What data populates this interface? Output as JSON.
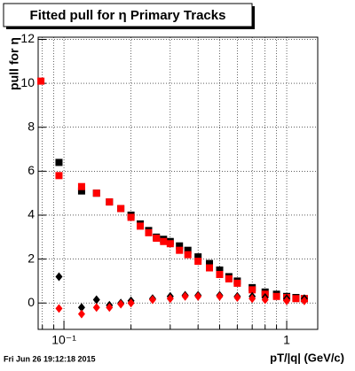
{
  "chart_data": {
    "type": "scatter",
    "title": "Fitted pull for  η  Primary Tracks",
    "ylabel": "pull for  η",
    "xlabel": "pT/|q| (GeV/c)",
    "footer": "Fri Jun 26 19:12:18 2015",
    "xscale": "log",
    "grid": true,
    "xlim": [
      0.0766,
      1.378
    ],
    "ylim": [
      -1.2,
      12.1
    ],
    "xticks": [
      {
        "value": 0.1,
        "label": "10⁻¹"
      },
      1
    ],
    "xminor": [
      0.08,
      0.09,
      0.2,
      0.3,
      0.4,
      0.5,
      0.6,
      0.7,
      0.8,
      0.9
    ],
    "yticks": [
      0,
      2,
      4,
      6,
      8,
      10,
      12
    ],
    "series": [
      {
        "color": "#000000",
        "marker": "square",
        "x": [
          0.095,
          0.12,
          0.14,
          0.16,
          0.18,
          0.2,
          0.22,
          0.24,
          0.26,
          0.28,
          0.3,
          0.33,
          0.36,
          0.4,
          0.45,
          0.5,
          0.55,
          0.6,
          0.7,
          0.8,
          0.9,
          1.0,
          1.1,
          1.2
        ],
        "values": [
          6.4,
          5.1,
          5.0,
          4.6,
          4.3,
          4.0,
          3.6,
          3.3,
          3.0,
          2.9,
          2.8,
          2.6,
          2.4,
          2.1,
          1.8,
          1.5,
          1.2,
          1.0,
          0.7,
          0.5,
          0.4,
          0.3,
          0.25,
          0.2
        ]
      },
      {
        "color": "#ff0000",
        "marker": "square",
        "x": [
          0.0788,
          0.095,
          0.12,
          0.14,
          0.16,
          0.18,
          0.2,
          0.22,
          0.24,
          0.26,
          0.28,
          0.3,
          0.33,
          0.36,
          0.4,
          0.45,
          0.5,
          0.55,
          0.6,
          0.7,
          0.8,
          0.9,
          1.0,
          1.1,
          1.2
        ],
        "values": [
          10.1,
          5.8,
          5.3,
          5.0,
          4.6,
          4.3,
          3.9,
          3.5,
          3.2,
          2.95,
          2.8,
          2.7,
          2.4,
          2.2,
          1.9,
          1.6,
          1.3,
          1.1,
          0.9,
          0.6,
          0.4,
          0.3,
          0.25,
          0.2,
          0.2
        ]
      },
      {
        "color": "#000000",
        "marker": "diamond",
        "x": [
          0.095,
          0.12,
          0.14,
          0.16,
          0.18,
          0.2,
          0.25,
          0.3,
          0.35,
          0.4,
          0.5,
          0.6,
          0.7,
          0.8,
          1.0,
          1.2
        ],
        "values": [
          1.2,
          -0.2,
          0.15,
          -0.1,
          0.0,
          0.1,
          0.2,
          0.3,
          0.35,
          0.35,
          0.35,
          0.3,
          0.3,
          0.25,
          0.2,
          0.2
        ]
      },
      {
        "color": "#ff0000",
        "marker": "diamond",
        "x": [
          0.095,
          0.12,
          0.14,
          0.16,
          0.18,
          0.2,
          0.25,
          0.3,
          0.35,
          0.4,
          0.5,
          0.6,
          0.7,
          0.8,
          1.0,
          1.2
        ],
        "values": [
          -0.25,
          -0.5,
          -0.2,
          -0.2,
          -0.05,
          0.0,
          0.15,
          0.2,
          0.3,
          0.3,
          0.3,
          0.25,
          0.2,
          0.15,
          0.1,
          0.1
        ]
      }
    ]
  }
}
